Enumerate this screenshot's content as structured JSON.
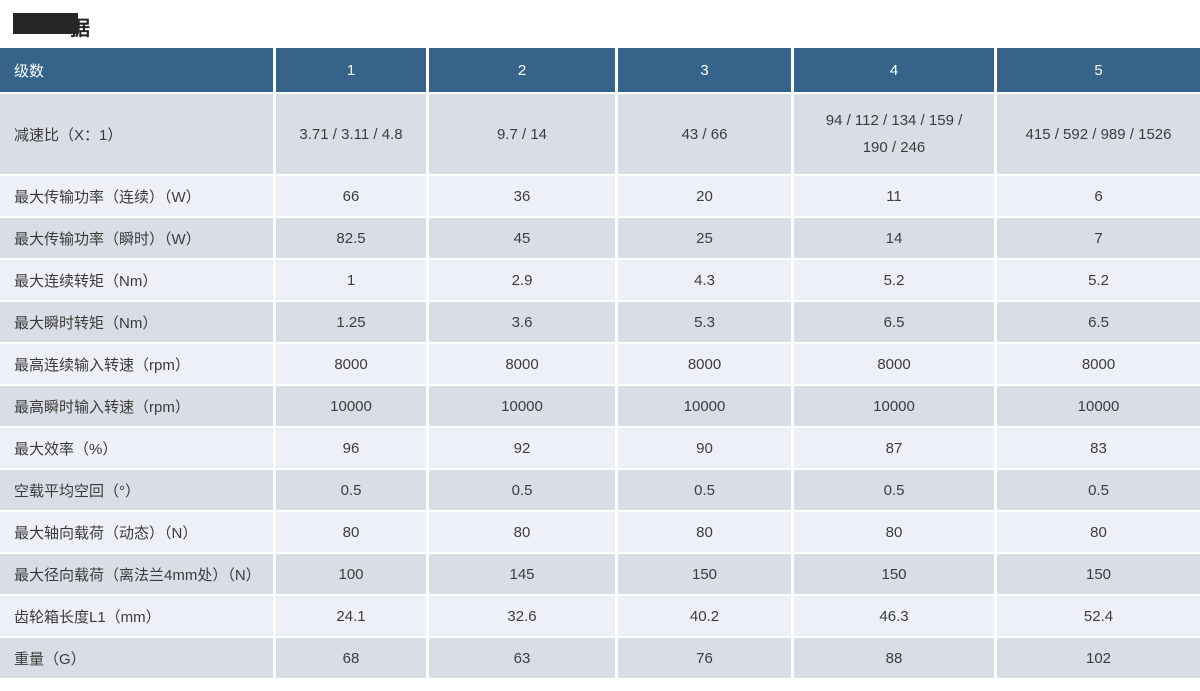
{
  "page": {
    "title_visible_fragment": "据",
    "title_redacted": true
  },
  "colors": {
    "header_bg": "#35638a",
    "row_dark": "#d8dde6",
    "row_light": "#eef0f7",
    "separator": "#ffffff",
    "title_text": "#262626",
    "cell_text": "#3d3d3d",
    "header_text": "#ffffff"
  },
  "table": {
    "header": {
      "label": "级数",
      "columns": [
        "1",
        "2",
        "3",
        "4",
        "5"
      ]
    },
    "rows": [
      {
        "label": "减速比（X：1）",
        "tall": true,
        "values": [
          "3.71 / 3.11 / 4.8",
          "9.7 / 14",
          "43 / 66",
          "94 / 112 / 134 / 159 / 190 / 246",
          "415 / 592 / 989 / 1526"
        ]
      },
      {
        "label": "最大传输功率（连续）（W）",
        "values": [
          "66",
          "36",
          "20",
          "11",
          "6"
        ]
      },
      {
        "label": "最大传输功率（瞬时）（W）",
        "values": [
          "82.5",
          "45",
          "25",
          "14",
          "7"
        ]
      },
      {
        "label": "最大连续转矩（Nm）",
        "values": [
          "1",
          "2.9",
          "4.3",
          "5.2",
          "5.2"
        ]
      },
      {
        "label": "最大瞬时转矩（Nm）",
        "values": [
          "1.25",
          "3.6",
          "5.3",
          "6.5",
          "6.5"
        ]
      },
      {
        "label": "最高连续输入转速（rpm）",
        "values": [
          "8000",
          "8000",
          "8000",
          "8000",
          "8000"
        ]
      },
      {
        "label": "最高瞬时输入转速（rpm）",
        "values": [
          "10000",
          "10000",
          "10000",
          "10000",
          "10000"
        ]
      },
      {
        "label": "最大效率（%）",
        "values": [
          "96",
          "92",
          "90",
          "87",
          "83"
        ]
      },
      {
        "label": "空载平均空回（°）",
        "values": [
          "0.5",
          "0.5",
          "0.5",
          "0.5",
          "0.5"
        ]
      },
      {
        "label": "最大轴向载荷（动态）（N）",
        "values": [
          "80",
          "80",
          "80",
          "80",
          "80"
        ]
      },
      {
        "label": "最大径向载荷（离法兰4mm处）（N）",
        "values": [
          "100",
          "145",
          "150",
          "150",
          "150"
        ]
      },
      {
        "label": "齿轮箱长度L1（mm）",
        "values": [
          "24.1",
          "32.6",
          "40.2",
          "46.3",
          "52.4"
        ]
      },
      {
        "label": "重量（G）",
        "values": [
          "68",
          "63",
          "76",
          "88",
          "102"
        ]
      }
    ]
  }
}
